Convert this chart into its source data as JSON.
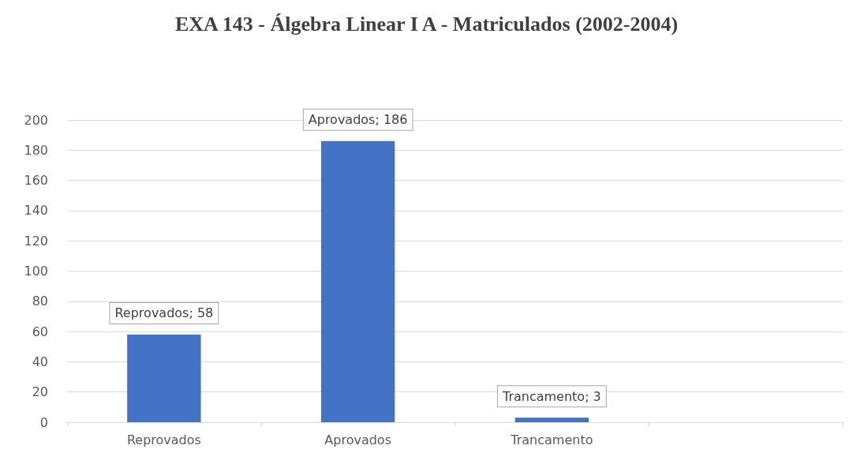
{
  "chart_data": {
    "type": "bar",
    "title": "EXA 143 - Álgebra Linear I A - Matriculados (2002-2004)",
    "categories": [
      "Reprovados",
      "Aprovados",
      "Trancamento",
      null
    ],
    "values": [
      58,
      186,
      3,
      null
    ],
    "value_labels": [
      "Reprovados; 58",
      "Aprovados; 186",
      "Trancamento; 3",
      null
    ],
    "color": "#4472c4",
    "ylim": [
      0,
      200
    ],
    "yticks": [
      0,
      20,
      40,
      60,
      80,
      100,
      120,
      140,
      160,
      180,
      200
    ],
    "grid": "y"
  }
}
